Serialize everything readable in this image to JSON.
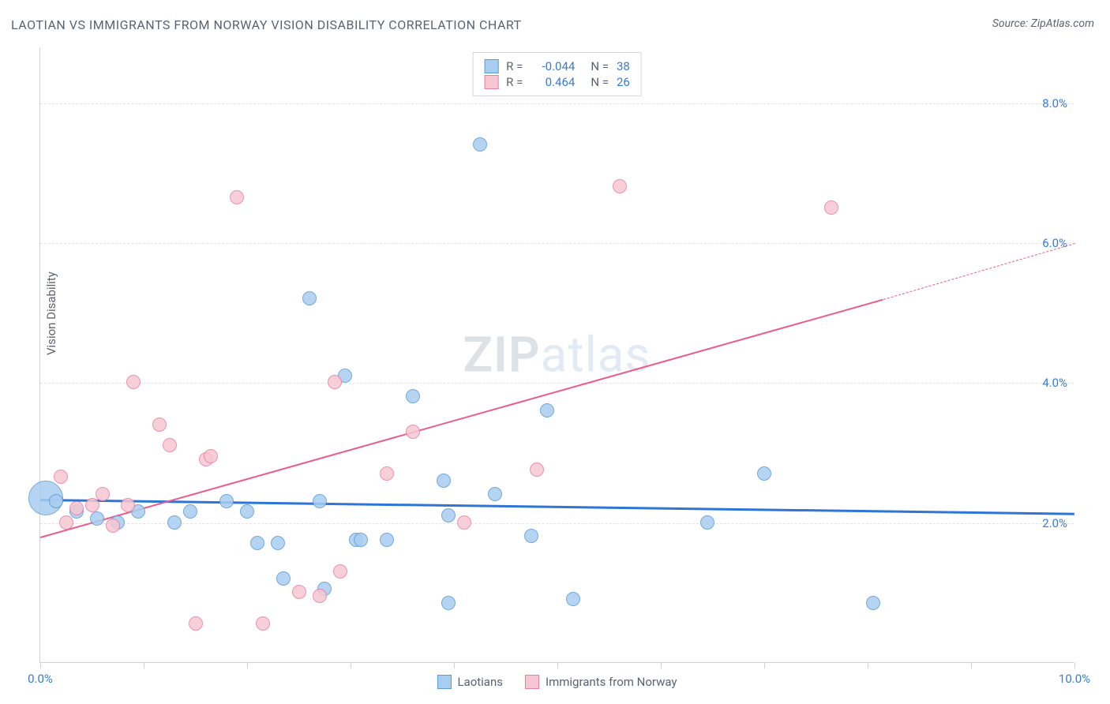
{
  "title": "LAOTIAN VS IMMIGRANTS FROM NORWAY VISION DISABILITY CORRELATION CHART",
  "source_prefix": "Source: ",
  "source_name": "ZipAtlas.com",
  "ylabel": "Vision Disability",
  "watermark": {
    "bold": "ZIP",
    "light": "atlas"
  },
  "colors": {
    "blue_fill": "#a9cdf0",
    "blue_stroke": "#5b9bd5",
    "pink_fill": "#f6c7d3",
    "pink_stroke": "#e87ea1",
    "blue_line": "#2e75d6",
    "pink_line": "#e85d8a",
    "axis_label": "#377bd8",
    "text": "#5a6470"
  },
  "chart": {
    "type": "scatter",
    "xlim": [
      0,
      10
    ],
    "ylim": [
      0,
      8.8
    ],
    "xticks": [
      0,
      1,
      2,
      3,
      4,
      5,
      6,
      7,
      8,
      9,
      10
    ],
    "xtick_labels": {
      "0": "0.0%",
      "10": "10.0%"
    },
    "yticks": [
      2,
      4,
      6,
      8
    ],
    "ytick_labels": {
      "2": "2.0%",
      "4": "4.0%",
      "6": "6.0%",
      "8": "8.0%"
    },
    "marker_radius": 9,
    "series": [
      {
        "key": "laotians",
        "label": "Laotians",
        "color_fill": "#a9cdf0",
        "color_stroke": "#5b9bd5",
        "R": "-0.044",
        "N": "38",
        "trend": {
          "x1": 0,
          "y1": 2.35,
          "x2": 10,
          "y2": 2.15,
          "width": 3
        },
        "points": [
          {
            "x": 0.05,
            "y": 2.35,
            "r": 22
          },
          {
            "x": 0.15,
            "y": 2.3
          },
          {
            "x": 0.35,
            "y": 2.15
          },
          {
            "x": 0.55,
            "y": 2.05
          },
          {
            "x": 0.75,
            "y": 2.0
          },
          {
            "x": 0.95,
            "y": 2.15
          },
          {
            "x": 1.3,
            "y": 2.0
          },
          {
            "x": 1.45,
            "y": 2.15
          },
          {
            "x": 1.8,
            "y": 2.3
          },
          {
            "x": 2.0,
            "y": 2.15
          },
          {
            "x": 2.1,
            "y": 1.7
          },
          {
            "x": 2.3,
            "y": 1.7
          },
          {
            "x": 2.35,
            "y": 1.2
          },
          {
            "x": 2.6,
            "y": 5.2
          },
          {
            "x": 2.7,
            "y": 2.3
          },
          {
            "x": 2.75,
            "y": 1.05
          },
          {
            "x": 2.95,
            "y": 4.1
          },
          {
            "x": 3.05,
            "y": 1.75
          },
          {
            "x": 3.1,
            "y": 1.75
          },
          {
            "x": 3.35,
            "y": 1.75
          },
          {
            "x": 3.6,
            "y": 3.8
          },
          {
            "x": 3.9,
            "y": 2.6
          },
          {
            "x": 3.95,
            "y": 2.1
          },
          {
            "x": 3.95,
            "y": 0.85
          },
          {
            "x": 4.25,
            "y": 7.4
          },
          {
            "x": 4.4,
            "y": 2.4
          },
          {
            "x": 4.75,
            "y": 1.8
          },
          {
            "x": 4.9,
            "y": 3.6
          },
          {
            "x": 5.15,
            "y": 0.9
          },
          {
            "x": 6.45,
            "y": 2.0
          },
          {
            "x": 7.0,
            "y": 2.7
          },
          {
            "x": 8.05,
            "y": 0.85
          }
        ]
      },
      {
        "key": "norway",
        "label": "Immigrants from Norway",
        "color_fill": "#f6c7d3",
        "color_stroke": "#e87ea1",
        "R": "0.464",
        "N": "26",
        "trend": {
          "x1": 0,
          "y1": 1.8,
          "x2": 8.15,
          "y2": 5.2,
          "width": 2,
          "extend_to_x": 10,
          "extend_to_y": 6.0
        },
        "points": [
          {
            "x": 0.2,
            "y": 2.65
          },
          {
            "x": 0.25,
            "y": 2.0
          },
          {
            "x": 0.35,
            "y": 2.2
          },
          {
            "x": 0.5,
            "y": 2.25
          },
          {
            "x": 0.6,
            "y": 2.4
          },
          {
            "x": 0.7,
            "y": 1.95
          },
          {
            "x": 0.85,
            "y": 2.25
          },
          {
            "x": 0.9,
            "y": 4.0
          },
          {
            "x": 1.15,
            "y": 3.4
          },
          {
            "x": 1.25,
            "y": 3.1
          },
          {
            "x": 1.5,
            "y": 0.55
          },
          {
            "x": 1.6,
            "y": 2.9
          },
          {
            "x": 1.65,
            "y": 2.95
          },
          {
            "x": 1.9,
            "y": 6.65
          },
          {
            "x": 2.15,
            "y": 0.55
          },
          {
            "x": 2.5,
            "y": 1.0
          },
          {
            "x": 2.7,
            "y": 0.95
          },
          {
            "x": 2.85,
            "y": 4.0
          },
          {
            "x": 2.9,
            "y": 1.3
          },
          {
            "x": 3.35,
            "y": 2.7
          },
          {
            "x": 3.6,
            "y": 3.3
          },
          {
            "x": 4.1,
            "y": 2.0
          },
          {
            "x": 4.8,
            "y": 2.75
          },
          {
            "x": 5.6,
            "y": 6.8
          },
          {
            "x": 7.65,
            "y": 6.5
          }
        ]
      }
    ]
  },
  "stats_labels": {
    "R": "R =",
    "N": "N ="
  }
}
